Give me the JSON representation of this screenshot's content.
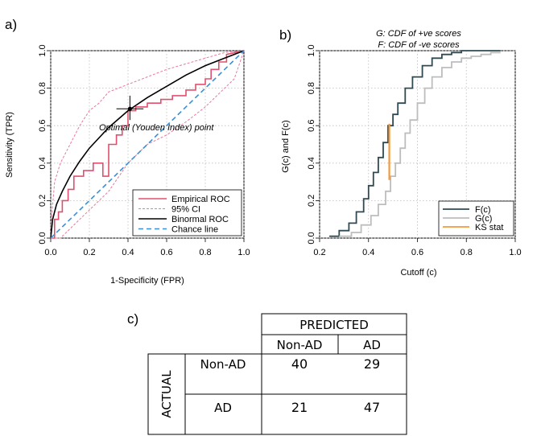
{
  "panels": {
    "a": "a)",
    "b": "b)",
    "c": "c)"
  },
  "chart_data": [
    {
      "type": "line",
      "xlabel": "1-Specificity (FPR)",
      "ylabel": "Sensitivity (TPR)",
      "xlim": [
        0,
        1
      ],
      "ylim": [
        0,
        1
      ],
      "xticks": [
        "0.0",
        "0.2",
        "0.4",
        "0.6",
        "0.8",
        "1.0"
      ],
      "yticks": [
        "0.0",
        "0.2",
        "0.4",
        "0.6",
        "0.8",
        "1.0"
      ],
      "grid": true,
      "legend_position": "bottom-right",
      "legend": [
        "Empirical ROC",
        "95% CI",
        "Binormal ROC",
        "Chance line"
      ],
      "annotation": "Optimal (Youden Index) point",
      "optimal_point": {
        "x": 0.41,
        "y": 0.69,
        "xerr": [
          0.34,
          0.48
        ],
        "yerr": [
          0.63,
          0.76
        ]
      },
      "colors": {
        "empirical": "#e0506e",
        "ci": "#e8799a",
        "binormal": "#000000",
        "chance": "#3a8fd6"
      },
      "series": [
        {
          "name": "Empirical ROC",
          "x": [
            0,
            0.02,
            0.02,
            0.04,
            0.04,
            0.06,
            0.06,
            0.09,
            0.09,
            0.12,
            0.12,
            0.17,
            0.17,
            0.22,
            0.22,
            0.27,
            0.27,
            0.3,
            0.3,
            0.34,
            0.34,
            0.37,
            0.37,
            0.4,
            0.4,
            0.44,
            0.44,
            0.5,
            0.5,
            0.57,
            0.57,
            0.63,
            0.63,
            0.7,
            0.7,
            0.75,
            0.75,
            0.8,
            0.8,
            0.83,
            0.83,
            0.87,
            0.87,
            0.91,
            0.91,
            1.0
          ],
          "y": [
            0,
            0,
            0.1,
            0.1,
            0.14,
            0.14,
            0.2,
            0.2,
            0.26,
            0.26,
            0.33,
            0.33,
            0.36,
            0.36,
            0.4,
            0.4,
            0.33,
            0.33,
            0.5,
            0.5,
            0.55,
            0.55,
            0.6,
            0.6,
            0.68,
            0.68,
            0.7,
            0.7,
            0.72,
            0.72,
            0.74,
            0.74,
            0.76,
            0.76,
            0.79,
            0.79,
            0.82,
            0.82,
            0.85,
            0.85,
            0.9,
            0.9,
            0.94,
            0.94,
            0.98,
            1.0
          ]
        },
        {
          "name": "95% CI",
          "x": [
            0,
            0.02,
            0.05,
            0.1,
            0.15,
            0.2,
            0.25,
            0.3,
            0.4,
            0.5,
            0.6,
            0.7,
            0.8,
            0.9,
            1.0
          ],
          "y": [
            0.05,
            0.3,
            0.4,
            0.5,
            0.6,
            0.68,
            0.72,
            0.78,
            0.82,
            0.86,
            0.9,
            0.93,
            0.96,
            0.99,
            1.0
          ]
        },
        {
          "name": "95% CI",
          "x": [
            0,
            0.05,
            0.1,
            0.15,
            0.2,
            0.3,
            0.4,
            0.5,
            0.6,
            0.7,
            0.8,
            0.9,
            0.95,
            1.0
          ],
          "y": [
            0,
            0,
            0.05,
            0.1,
            0.15,
            0.25,
            0.4,
            0.5,
            0.55,
            0.62,
            0.7,
            0.8,
            0.85,
            1.0
          ]
        },
        {
          "name": "Binormal ROC",
          "x": [
            0,
            0.01,
            0.03,
            0.06,
            0.1,
            0.15,
            0.2,
            0.3,
            0.4,
            0.5,
            0.6,
            0.7,
            0.8,
            0.9,
            1.0
          ],
          "y": [
            0,
            0.1,
            0.18,
            0.25,
            0.33,
            0.41,
            0.48,
            0.59,
            0.68,
            0.75,
            0.81,
            0.87,
            0.92,
            0.96,
            1.0
          ]
        },
        {
          "name": "Chance line",
          "x": [
            0,
            1
          ],
          "y": [
            0,
            1
          ]
        }
      ]
    },
    {
      "type": "line",
      "title": "G: CDF of +ve scores",
      "subtitle": "F: CDF of -ve scores",
      "xlabel": "Cutoff (c)",
      "ylabel": "G(c) and F(c)",
      "xlim": [
        0.2,
        1.0
      ],
      "ylim": [
        0,
        1
      ],
      "xticks": [
        "0.2",
        "0.4",
        "0.6",
        "0.8",
        "1.0"
      ],
      "yticks": [
        "0.0",
        "0.2",
        "0.4",
        "0.6",
        "0.8",
        "1.0"
      ],
      "grid": true,
      "legend_position": "bottom-right",
      "legend": [
        "F(c)",
        "G(c)",
        "KS stat"
      ],
      "colors": {
        "F": "#2f4a52",
        "G": "#bdbdbd",
        "KS": "#f39a3c"
      },
      "ks_stat": {
        "x": 0.485,
        "y_from": 0.31,
        "y_to": 0.61
      },
      "series": [
        {
          "name": "F(c)",
          "x": [
            0.24,
            0.28,
            0.32,
            0.35,
            0.38,
            0.4,
            0.42,
            0.44,
            0.46,
            0.48,
            0.5,
            0.52,
            0.55,
            0.58,
            0.62,
            0.66,
            0.7,
            0.74,
            0.78,
            0.82,
            0.86,
            0.9,
            0.94
          ],
          "y": [
            0.01,
            0.04,
            0.08,
            0.14,
            0.21,
            0.28,
            0.35,
            0.43,
            0.51,
            0.6,
            0.66,
            0.72,
            0.8,
            0.86,
            0.92,
            0.96,
            0.98,
            0.99,
            1.0,
            1.0,
            1.0,
            1.0,
            1.0
          ]
        },
        {
          "name": "G(c)",
          "x": [
            0.28,
            0.33,
            0.37,
            0.41,
            0.44,
            0.47,
            0.49,
            0.51,
            0.53,
            0.55,
            0.57,
            0.6,
            0.63,
            0.66,
            0.7,
            0.74,
            0.78,
            0.82,
            0.86,
            0.9,
            0.94
          ],
          "y": [
            0.01,
            0.03,
            0.07,
            0.12,
            0.18,
            0.25,
            0.33,
            0.4,
            0.48,
            0.56,
            0.63,
            0.72,
            0.8,
            0.86,
            0.91,
            0.94,
            0.96,
            0.97,
            0.98,
            0.99,
            0.99
          ]
        }
      ]
    },
    {
      "type": "table",
      "predicted_label": "PREDICTED",
      "actual_label": "ACTUAL",
      "columns": [
        "Non-AD",
        "AD"
      ],
      "rows": [
        {
          "label": "Non-AD",
          "values": [
            "40",
            "29"
          ]
        },
        {
          "label": "AD",
          "values": [
            "21",
            "47"
          ]
        }
      ]
    }
  ]
}
